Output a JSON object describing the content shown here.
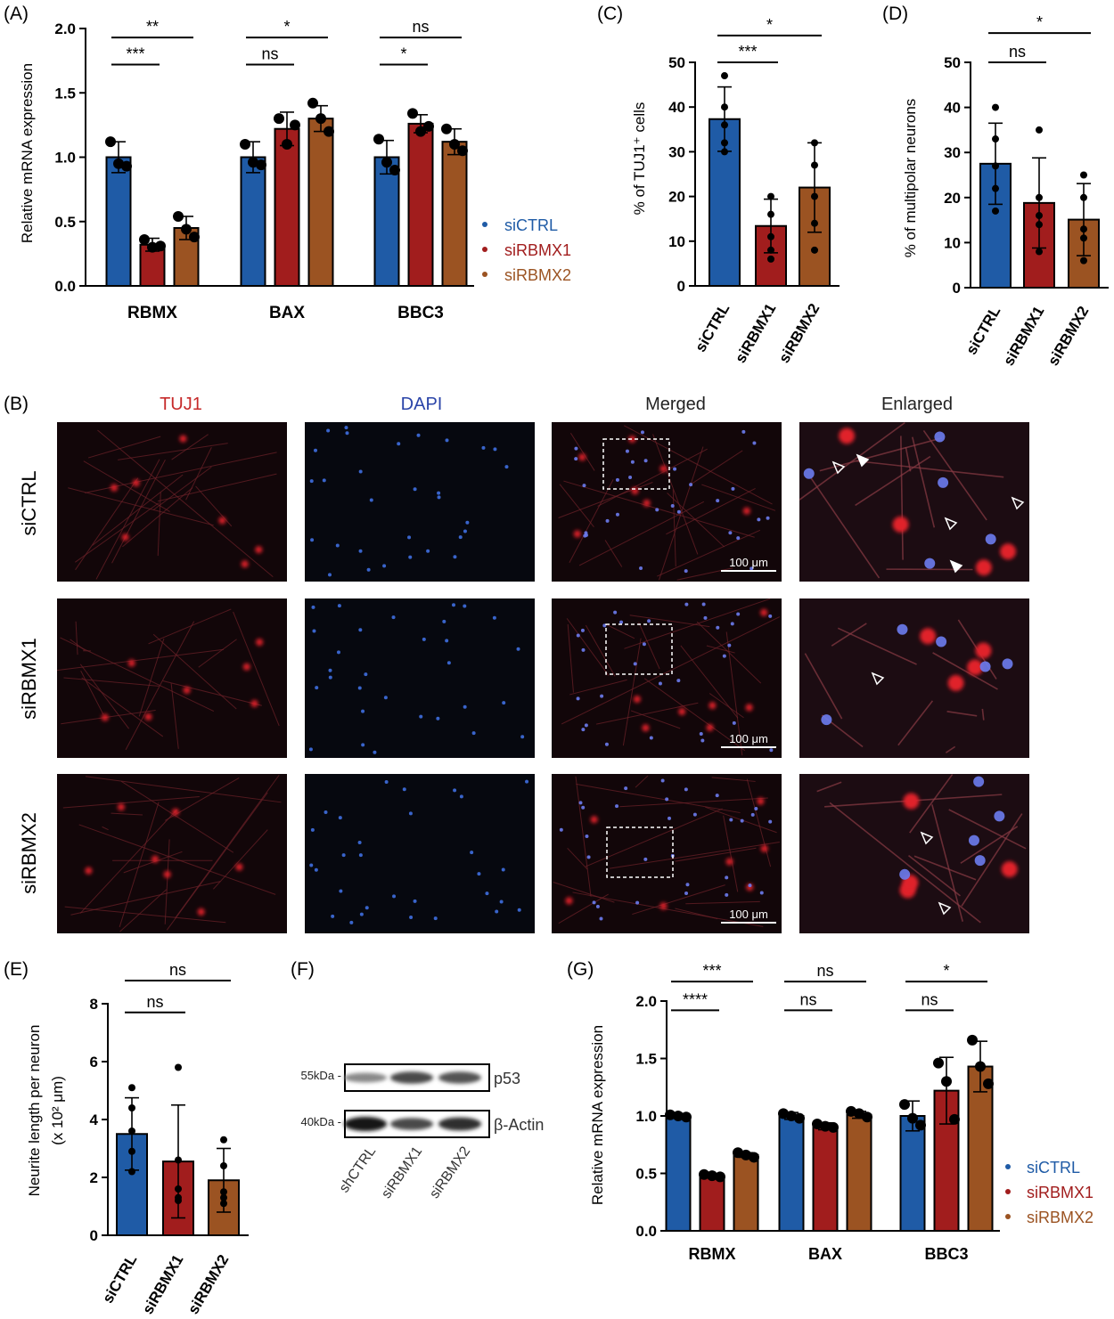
{
  "colors": {
    "ctrl": "#1f5ba6",
    "rbmx1": "#a11d1d",
    "rbmx2": "#9b5322",
    "axis": "#000000"
  },
  "chart_data": [
    {
      "id": "A",
      "type": "bar",
      "panel_label": "(A)",
      "categories": [
        "RBMX",
        "BAX",
        "BBC3"
      ],
      "ylabel": "Relative mRNA expression",
      "ylim": [
        0,
        2.0
      ],
      "yticks": [
        0.0,
        0.5,
        1.0,
        1.5,
        2.0
      ],
      "ytick_labels": [
        "0.0",
        "0.5",
        "1.0",
        "1.5",
        "2.0"
      ],
      "legend": [
        "siCTRL",
        "siRBMX1",
        "siRBMX2"
      ],
      "series": [
        {
          "name": "siCTRL",
          "values": [
            1.0,
            1.0,
            1.0
          ],
          "errors": [
            0.12,
            0.12,
            0.13
          ],
          "points": [
            [
              1.12,
              0.95,
              0.93
            ],
            [
              1.1,
              0.96,
              0.94
            ],
            [
              1.14,
              0.96,
              0.9
            ]
          ]
        },
        {
          "name": "siRBMX1",
          "values": [
            0.32,
            1.22,
            1.26
          ],
          "errors": [
            0.05,
            0.13,
            0.07
          ],
          "points": [
            [
              0.36,
              0.3,
              0.31
            ],
            [
              1.3,
              1.1,
              1.25
            ],
            [
              1.34,
              1.2,
              1.24
            ]
          ]
        },
        {
          "name": "siRBMX2",
          "values": [
            0.45,
            1.3,
            1.12
          ],
          "errors": [
            0.09,
            0.1,
            0.1
          ],
          "points": [
            [
              0.54,
              0.44,
              0.38
            ],
            [
              1.42,
              1.3,
              1.2
            ],
            [
              1.22,
              1.1,
              1.05
            ]
          ]
        }
      ],
      "significance": [
        {
          "label": "**",
          "from": [
            0,
            0
          ],
          "to": [
            0,
            2
          ],
          "y": 1.93
        },
        {
          "label": "***",
          "from": [
            0,
            0
          ],
          "to": [
            0,
            1
          ],
          "y": 1.72
        },
        {
          "label": "*",
          "from": [
            1,
            0
          ],
          "to": [
            1,
            2
          ],
          "y": 1.93
        },
        {
          "label": "ns",
          "from": [
            1,
            0
          ],
          "to": [
            1,
            1
          ],
          "y": 1.72
        },
        {
          "label": "ns",
          "from": [
            2,
            0
          ],
          "to": [
            2,
            2
          ],
          "y": 1.93
        },
        {
          "label": "*",
          "from": [
            2,
            0
          ],
          "to": [
            2,
            1
          ],
          "y": 1.72
        }
      ]
    },
    {
      "id": "C",
      "type": "bar",
      "panel_label": "(C)",
      "categories": [
        "siCTRL",
        "siRBMX1",
        "siRBMX2"
      ],
      "ylabel": "% of TUJ1⁺ cells",
      "ylim": [
        0,
        50
      ],
      "yticks": [
        0,
        10,
        20,
        30,
        40,
        50
      ],
      "ytick_labels": [
        "0",
        "10",
        "20",
        "30",
        "40",
        "50"
      ],
      "values": [
        37.3,
        13.4,
        22.0
      ],
      "errors": [
        7.2,
        6.0,
        10.0
      ],
      "points": [
        [
          47,
          40,
          36,
          32,
          30
        ],
        [
          20,
          16,
          11,
          8,
          6
        ],
        [
          32,
          27,
          20,
          14,
          8
        ]
      ],
      "significance": [
        {
          "label": "*",
          "from": 0,
          "to": 2,
          "y": 56
        },
        {
          "label": "***",
          "from": 0,
          "to": 1,
          "y": 50
        }
      ]
    },
    {
      "id": "D",
      "type": "bar",
      "panel_label": "(D)",
      "categories": [
        "siCTRL",
        "siRBMX1",
        "siRBMX2"
      ],
      "ylabel": "% of multipolar neurons",
      "ylim": [
        0,
        50
      ],
      "yticks": [
        0,
        10,
        20,
        30,
        40,
        50
      ],
      "ytick_labels": [
        "0",
        "10",
        "20",
        "30",
        "40",
        "50"
      ],
      "values": [
        27.5,
        18.8,
        15.1
      ],
      "errors": [
        9.0,
        10.0,
        8.0
      ],
      "points": [
        [
          40,
          33,
          27,
          22,
          17
        ],
        [
          35,
          20,
          16,
          14,
          8
        ],
        [
          25,
          20,
          13,
          11,
          6
        ]
      ],
      "significance": [
        {
          "label": "*",
          "from": 0,
          "to": 2,
          "y": 56.5
        },
        {
          "label": "ns",
          "from": 0,
          "to": 1,
          "y": 50
        }
      ]
    },
    {
      "id": "E",
      "type": "bar",
      "panel_label": "(E)",
      "categories": [
        "siCTRL",
        "siRBMX1",
        "siRBMX2"
      ],
      "ylabel": "Neurite length per neuron",
      "ylabel2": "(x 10² μm)",
      "ylim": [
        0,
        8
      ],
      "yticks": [
        0,
        2,
        4,
        6,
        8
      ],
      "ytick_labels": [
        "0",
        "2",
        "4",
        "6",
        "8"
      ],
      "values": [
        3.5,
        2.55,
        1.9
      ],
      "errors": [
        1.25,
        1.95,
        1.1
      ],
      "points": [
        [
          5.1,
          4.4,
          3.6,
          2.9,
          2.2
        ],
        [
          5.8,
          2.6,
          1.6,
          1.3,
          1.2
        ],
        [
          3.3,
          2.4,
          1.5,
          1.3,
          1.1
        ]
      ],
      "significance": [
        {
          "label": "ns",
          "from": 0,
          "to": 2,
          "y": 8.8
        },
        {
          "label": "ns",
          "from": 0,
          "to": 1,
          "y": 7.7
        }
      ]
    },
    {
      "id": "G",
      "type": "bar",
      "panel_label": "(G)",
      "categories": [
        "RBMX",
        "BAX",
        "BBC3"
      ],
      "ylabel": "Relative mRNA expression",
      "ylim": [
        0,
        2.0
      ],
      "yticks": [
        0.0,
        0.5,
        1.0,
        1.5,
        2.0
      ],
      "ytick_labels": [
        "0.0",
        "0.5",
        "1.0",
        "1.5",
        "2.0"
      ],
      "legend": [
        "siCTRL",
        "siRBMX1",
        "siRBMX2"
      ],
      "series": [
        {
          "name": "siCTRL",
          "values": [
            1.0,
            1.0,
            1.0
          ],
          "errors": [
            0.02,
            0.03,
            0.13
          ],
          "points": [
            [
              1.01,
              1.0,
              0.99
            ],
            [
              1.02,
              1.0,
              0.98
            ],
            [
              1.1,
              0.98,
              0.92
            ]
          ]
        },
        {
          "name": "siRBMX1",
          "values": [
            0.48,
            0.91,
            1.22
          ],
          "errors": [
            0.01,
            0.03,
            0.29
          ],
          "points": [
            [
              0.49,
              0.48,
              0.47
            ],
            [
              0.93,
              0.91,
              0.9
            ],
            [
              1.46,
              1.3,
              0.97
            ]
          ]
        },
        {
          "name": "siRBMX2",
          "values": [
            0.66,
            1.01,
            1.43
          ],
          "errors": [
            0.02,
            0.03,
            0.22
          ],
          "points": [
            [
              0.68,
              0.66,
              0.64
            ],
            [
              1.04,
              1.02,
              0.99
            ],
            [
              1.66,
              1.43,
              1.28
            ]
          ]
        }
      ],
      "significance": [
        {
          "label": "***",
          "from": [
            0,
            0
          ],
          "to": [
            0,
            2
          ],
          "y": 2.17
        },
        {
          "label": "****",
          "from": [
            0,
            0
          ],
          "to": [
            0,
            1
          ],
          "y": 1.92
        },
        {
          "label": "ns",
          "from": [
            1,
            0
          ],
          "to": [
            1,
            2
          ],
          "y": 2.17
        },
        {
          "label": "ns",
          "from": [
            1,
            0
          ],
          "to": [
            1,
            1
          ],
          "y": 1.92
        },
        {
          "label": "*",
          "from": [
            2,
            0
          ],
          "to": [
            2,
            2
          ],
          "y": 2.17
        },
        {
          "label": "ns",
          "from": [
            2,
            0
          ],
          "to": [
            2,
            1
          ],
          "y": 1.92
        }
      ]
    }
  ],
  "microscopy": {
    "panel_label": "(B)",
    "columns": [
      "TUJ1",
      "DAPI",
      "Merged",
      "Enlarged"
    ],
    "rows": [
      "siCTRL",
      "siRBMX1",
      "siRBMX2"
    ],
    "scale_bar": "100 μm"
  },
  "western": {
    "panel_label": "(F)",
    "bands": [
      {
        "name": "p53",
        "kda": "55kDa -",
        "intensity": [
          0.35,
          0.7,
          0.65
        ]
      },
      {
        "name": "β-Actin",
        "kda": "40kDa -",
        "intensity": [
          1.0,
          0.7,
          0.85
        ]
      }
    ],
    "lanes": [
      "shCTRL",
      "siRBMX1",
      "siRBMX2"
    ]
  }
}
